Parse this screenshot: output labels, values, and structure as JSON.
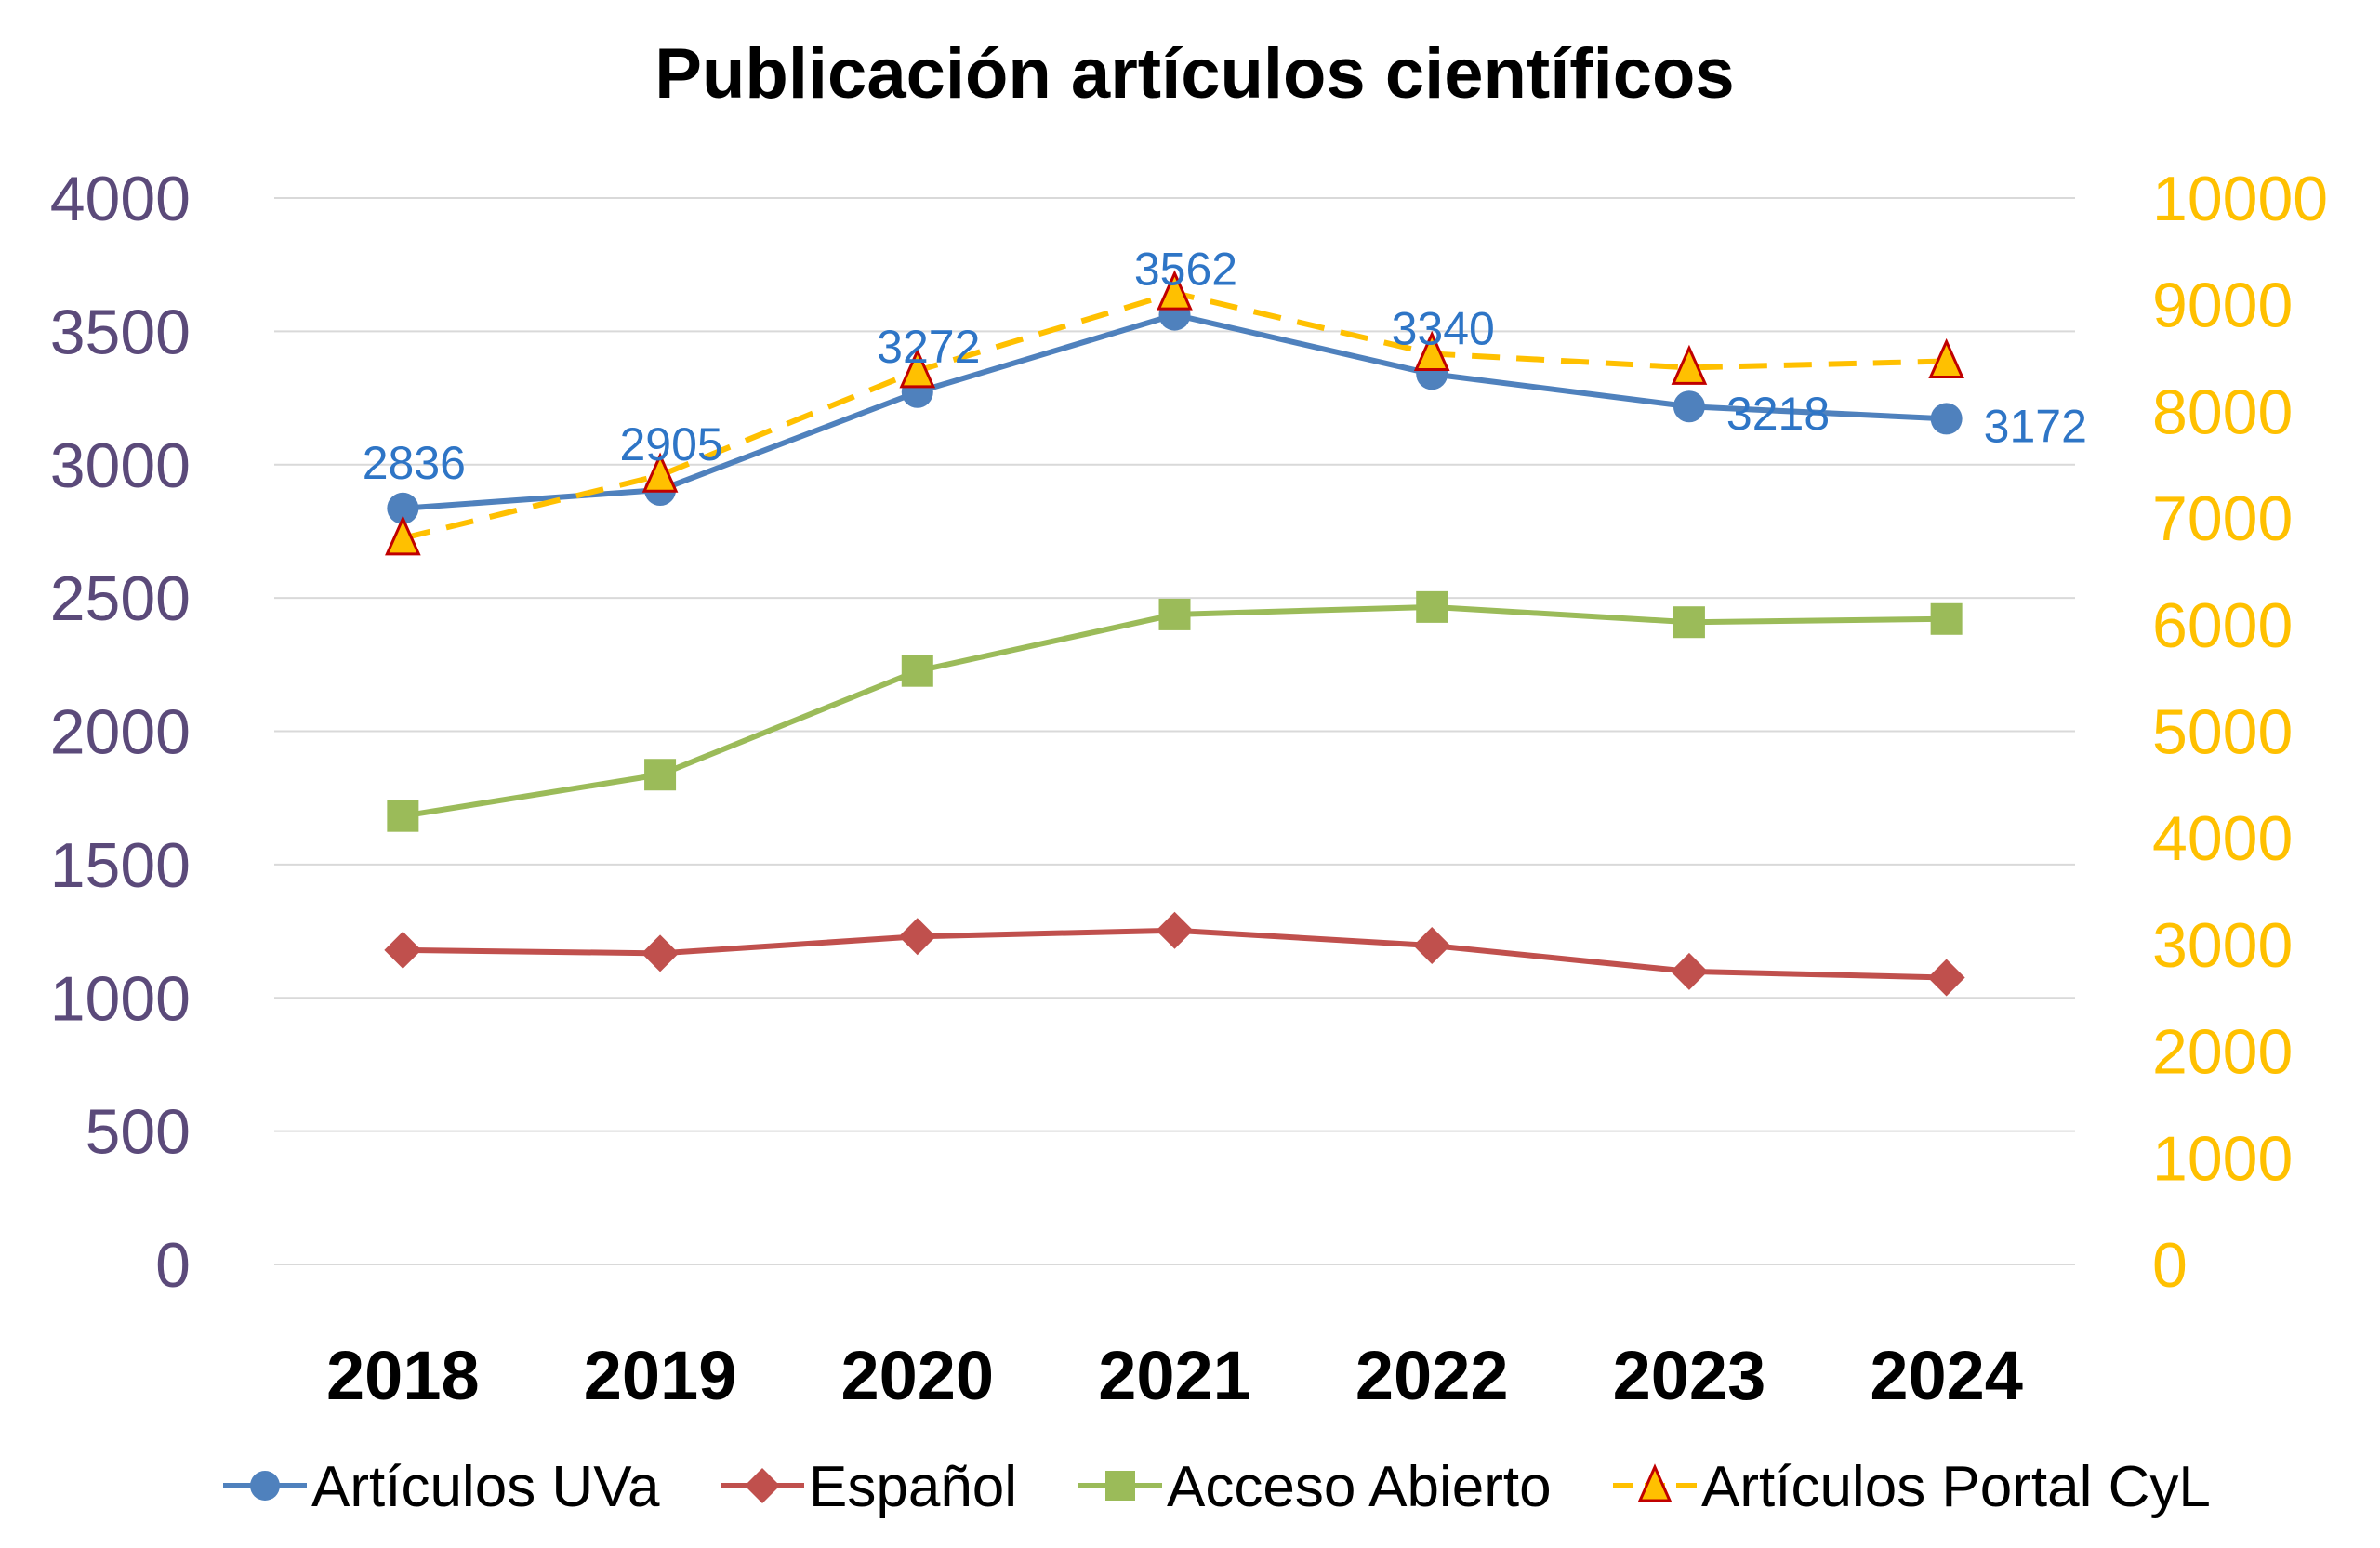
{
  "chart_data": {
    "type": "line",
    "title": "Publicación artículos científicos",
    "categories": [
      "2018",
      "2019",
      "2020",
      "2021",
      "2022",
      "2023",
      "2024"
    ],
    "y_left": {
      "ylim": [
        0,
        4000
      ],
      "ticks": [
        0,
        500,
        1000,
        1500,
        2000,
        2500,
        3000,
        3500,
        4000
      ],
      "color": "#5b4a7a"
    },
    "y_right": {
      "ylim": [
        0,
        10000
      ],
      "ticks": [
        0,
        1000,
        2000,
        3000,
        4000,
        5000,
        6000,
        7000,
        8000,
        9000,
        10000
      ],
      "color": "#ffc000"
    },
    "grid": true,
    "legend": "bottom",
    "series": [
      {
        "name": "Artículos UVa",
        "axis": "left",
        "color": "#4f81bd",
        "marker": "circle",
        "dash": false,
        "labels": true,
        "values": [
          2836,
          2905,
          3272,
          3562,
          3340,
          3218,
          3172
        ]
      },
      {
        "name": "Español",
        "axis": "left",
        "color": "#c0504d",
        "marker": "diamond",
        "dash": false,
        "labels": false,
        "values": [
          1179,
          1167,
          1230,
          1253,
          1196,
          1099,
          1076
        ]
      },
      {
        "name": "Acceso Abierto",
        "axis": "left",
        "color": "#9bbb59",
        "marker": "square",
        "dash": false,
        "labels": false,
        "values": [
          1682,
          1837,
          2226,
          2438,
          2466,
          2409,
          2421
        ]
      },
      {
        "name": "Artículos Portal CyL",
        "axis": "right",
        "color": "#ffc000",
        "marker": "triangle",
        "dash": true,
        "labels": false,
        "values": [
          6810,
          7400,
          8380,
          9110,
          8540,
          8410,
          8470
        ]
      }
    ]
  }
}
